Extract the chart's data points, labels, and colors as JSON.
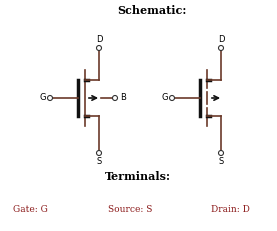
{
  "title": "Schematic:",
  "terminals_label": "Terminals:",
  "gate_label": "Gate: G",
  "source_label": "Source: S",
  "drain_label": "Drain: D",
  "bg_color": "#ffffff",
  "title_color": "#000000",
  "line_color": "#6B3A2A",
  "dark_color": "#111111",
  "label_color": "#000000",
  "terminal_text_color": "#8B1A1A",
  "figsize": [
    2.77,
    2.31
  ],
  "dpi": 100
}
